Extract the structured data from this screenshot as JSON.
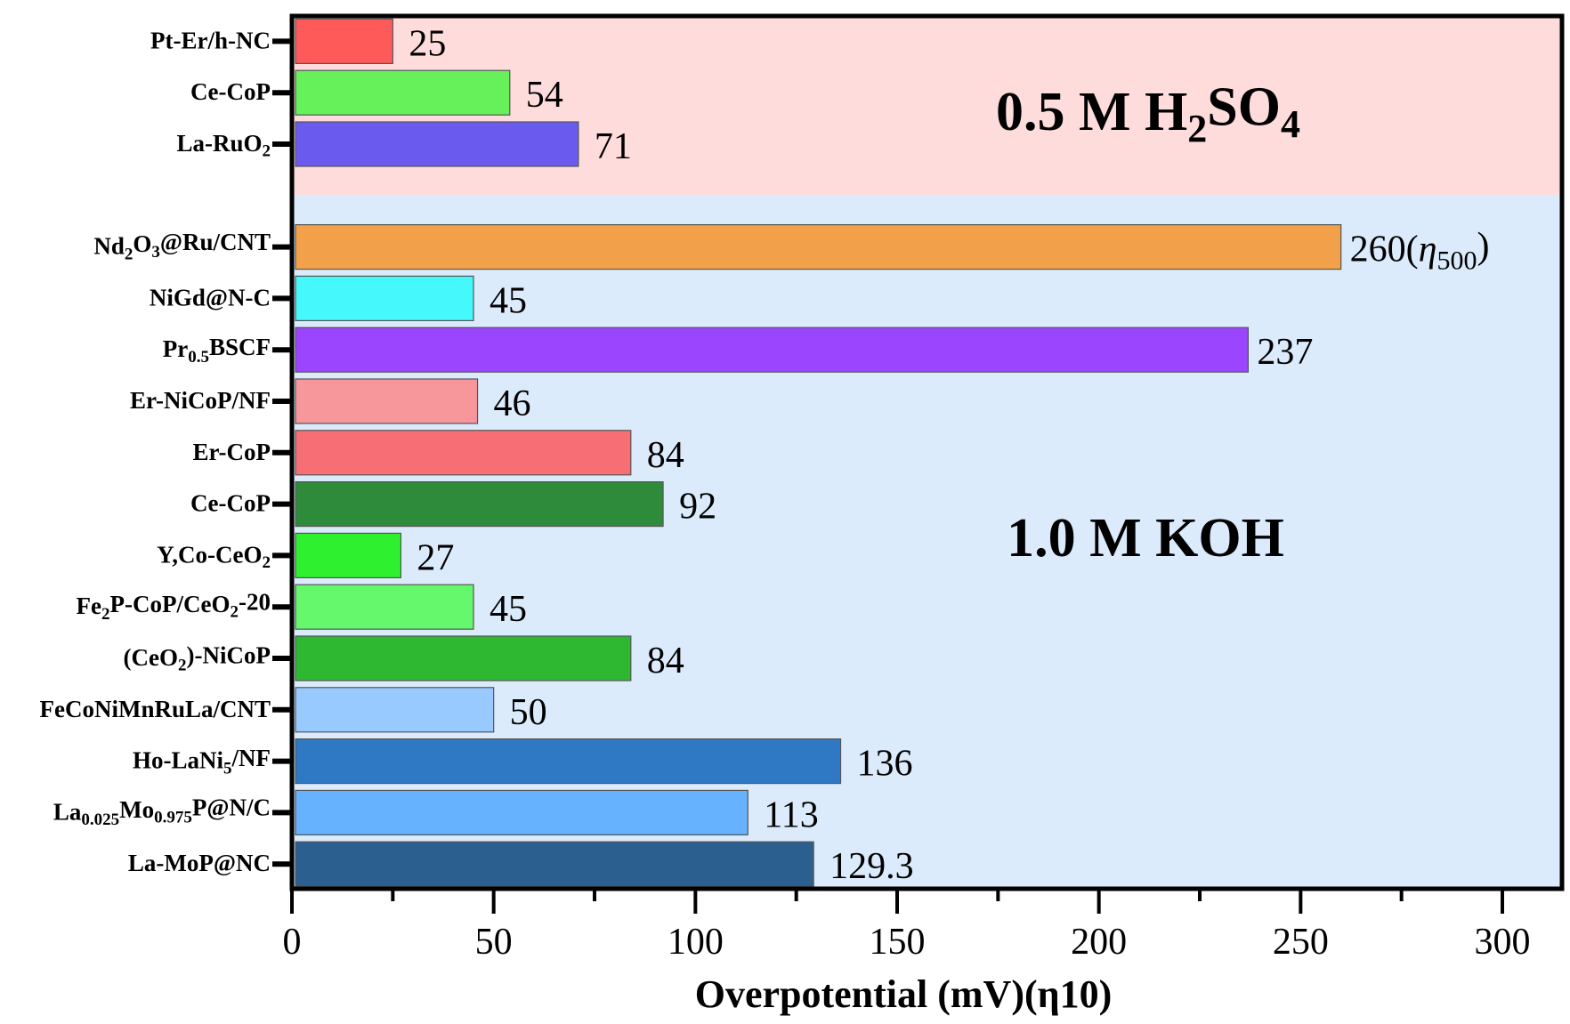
{
  "chart_data": {
    "type": "bar",
    "orientation": "horizontal",
    "xlabel": "Overpotential (mV)(η10)",
    "xlim": [
      0,
      315
    ],
    "xticks": [
      0,
      50,
      100,
      150,
      200,
      250,
      300
    ],
    "grid": false,
    "regions": [
      {
        "label": "0.5 M H_{2}SO_{4}",
        "color": "#ffdcdc",
        "categories": [
          0,
          1,
          2
        ]
      },
      {
        "label": "1.0 M KOH",
        "color": "#dcebfc",
        "categories": [
          3,
          4,
          5,
          6,
          7,
          8,
          9,
          10,
          11,
          12,
          13,
          14,
          15
        ]
      }
    ],
    "bars": [
      {
        "category": "Pt-Er/h-NC",
        "value": 25,
        "label": "25",
        "color": "#ff5a5a",
        "region": 0
      },
      {
        "category": "Ce-CoP",
        "value": 54,
        "label": "54",
        "color": "#66f05a",
        "region": 0
      },
      {
        "category": "La-RuO_{2}",
        "value": 71,
        "label": "71",
        "color": "#6a5aee",
        "region": 0
      },
      {
        "category": "Nd_{2}O_{3}@Ru/CNT",
        "value": 260,
        "label": "260(η_{500})",
        "color": "#f2a04a",
        "region": 1
      },
      {
        "category": "NiGd@N-C",
        "value": 45,
        "label": "45",
        "color": "#44f8fc",
        "region": 1
      },
      {
        "category": "Pr_{0.5}BSCF",
        "value": 237,
        "label": "237",
        "color": "#9b45ff",
        "region": 1
      },
      {
        "category": "Er-NiCoP/NF",
        "value": 46,
        "label": "46",
        "color": "#f7979c",
        "region": 1
      },
      {
        "category": "Er-CoP",
        "value": 84,
        "label": "84",
        "color": "#f76e74",
        "region": 1
      },
      {
        "category": "Ce-CoP",
        "value": 92,
        "label": "92",
        "color": "#2e8b3a",
        "region": 1
      },
      {
        "category": "Y,Co-CeO_{2}",
        "value": 27,
        "label": "27",
        "color": "#2ef02e",
        "region": 1
      },
      {
        "category": "Fe_{2}P-CoP/CeO_{2}-20",
        "value": 45,
        "label": "45",
        "color": "#66f86c",
        "region": 1
      },
      {
        "category": "(CeO_{2})-NiCoP",
        "value": 84,
        "label": "84",
        "color": "#2eb832",
        "region": 1
      },
      {
        "category": "FeCoNiMnRuLa/CNT",
        "value": 50,
        "label": "50",
        "color": "#99caff",
        "region": 1
      },
      {
        "category": "Ho-LaNi_{5}/NF",
        "value": 136,
        "label": "136",
        "color": "#2e78c4",
        "region": 1
      },
      {
        "category": "La_{0.025}Mo_{0.975}P@N/C",
        "value": 113,
        "label": "113",
        "color": "#66b2ff",
        "region": 1
      },
      {
        "category": "La-MoP@NC",
        "value": 129.3,
        "label": "129.3",
        "color": "#2b5f8f",
        "region": 1
      }
    ]
  }
}
